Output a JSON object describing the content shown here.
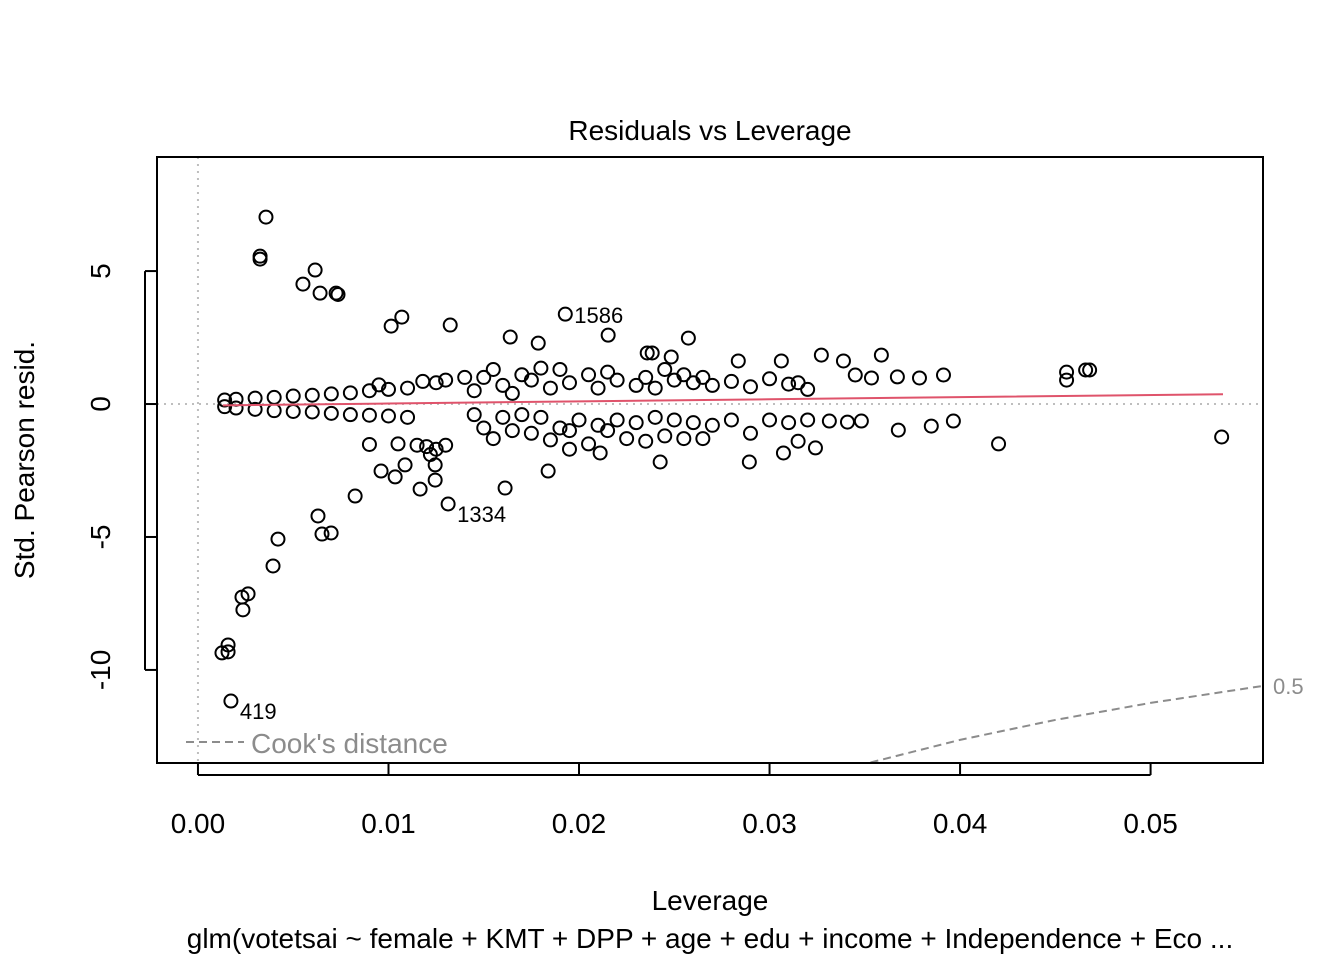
{
  "chart_data": {
    "type": "scatter",
    "title": "Residuals vs Leverage",
    "x_label": "Leverage",
    "y_label": "Std. Pearson resid.",
    "subtitle": "glm(votetsai ~ female + KMT + DPP + age + edu + income + Independence + Eco ...",
    "xlim": [
      -0.00215,
      0.0559
    ],
    "ylim": [
      -13.5,
      9.29
    ],
    "xticks": [
      {
        "value": 0,
        "label": "0.00"
      },
      0.01,
      0.02,
      0.03,
      0.04,
      0.05
    ],
    "yticks": [
      -10,
      -5,
      0,
      5
    ],
    "reference_lines": {
      "x": 0,
      "y": 0
    },
    "series": [
      {
        "color": "#000000",
        "x": [
          0.00357,
          0.00326,
          0.00326,
          0.00615,
          0.00551,
          0.00641,
          0.00725,
          0.00735,
          0.01014,
          0.0107,
          0.01324,
          0.01928,
          0.02153,
          0.01639,
          0.01786,
          0.02574,
          0.02358,
          0.02384,
          0.02484,
          0.02836,
          0.03062,
          0.03272,
          0.03388,
          0.03587,
          0.0345,
          0.03535,
          0.03671,
          0.03787,
          0.03913,
          0.04559,
          0.04559,
          0.04659,
          0.0468,
          0.05373,
          0.04202,
          0.03965,
          0.03849,
          0.03676,
          0.03482,
          0.03409,
          0.03314,
          0.03241,
          0.03073,
          0.02894,
          0.02426,
          0.02111,
          0.01838,
          0.01612,
          0.01313,
          0.01245,
          0.01245,
          0.01166,
          0.01087,
          0.01035,
          0.00961,
          0.00825,
          0.0063,
          0.00651,
          0.00699,
          0.0042,
          0.00394,
          0.00263,
          0.00236,
          0.00231,
          0.00158,
          0.00158,
          0.00126,
          0.00173,
          0.0014,
          0.002,
          0.003,
          0.004,
          0.005,
          0.006,
          0.007,
          0.008,
          0.009,
          0.01,
          0.011,
          0.0014,
          0.002,
          0.003,
          0.004,
          0.005,
          0.006,
          0.007,
          0.008,
          0.009,
          0.01,
          0.011,
          0.0095,
          0.0105,
          0.009,
          0.0115,
          0.012,
          0.0125,
          0.0122,
          0.013,
          0.0118,
          0.0125,
          0.013,
          0.014,
          0.0145,
          0.015,
          0.0155,
          0.016,
          0.0165,
          0.017,
          0.0175,
          0.018,
          0.0185,
          0.019,
          0.0195,
          0.0205,
          0.021,
          0.0215,
          0.022,
          0.023,
          0.0235,
          0.024,
          0.0245,
          0.025,
          0.0255,
          0.026,
          0.0265,
          0.027,
          0.028,
          0.029,
          0.03,
          0.031,
          0.0315,
          0.032,
          0.0145,
          0.015,
          0.0155,
          0.016,
          0.0165,
          0.017,
          0.0175,
          0.018,
          0.0185,
          0.019,
          0.0195,
          0.02,
          0.0205,
          0.021,
          0.0215,
          0.022,
          0.0225,
          0.023,
          0.0235,
          0.024,
          0.0245,
          0.025,
          0.0255,
          0.026,
          0.027,
          0.028,
          0.029,
          0.03,
          0.031,
          0.0315,
          0.032,
          0.0265,
          0.0195
        ],
        "values": [
          7.03,
          5.56,
          5.45,
          5.04,
          4.51,
          4.17,
          4.17,
          4.12,
          2.93,
          3.27,
          2.97,
          3.38,
          2.59,
          2.52,
          2.29,
          2.48,
          1.92,
          1.92,
          1.77,
          1.62,
          1.62,
          1.84,
          1.62,
          1.84,
          1.09,
          0.98,
          1.02,
          0.98,
          1.09,
          1.2,
          0.9,
          1.28,
          1.28,
          -1.24,
          -1.5,
          -0.64,
          -0.83,
          -0.98,
          -0.64,
          -0.68,
          -0.64,
          -1.65,
          -1.84,
          -2.18,
          -2.18,
          -1.84,
          -2.52,
          -3.16,
          -3.76,
          -2.29,
          -2.86,
          -3.2,
          -2.29,
          -2.74,
          -2.52,
          -3.46,
          -4.21,
          -4.89,
          -4.85,
          -5.08,
          -6.09,
          -7.14,
          -7.74,
          -7.26,
          -9.06,
          -9.32,
          -9.36,
          -11.17,
          0.15,
          0.18,
          0.22,
          0.25,
          0.3,
          0.33,
          0.38,
          0.42,
          0.5,
          0.55,
          0.6,
          -0.1,
          -0.15,
          -0.2,
          -0.25,
          -0.28,
          -0.3,
          -0.35,
          -0.4,
          -0.42,
          -0.45,
          -0.5,
          0.72,
          -1.5,
          -1.52,
          -1.55,
          -1.6,
          -1.7,
          -1.9,
          -1.55,
          0.85,
          0.8,
          0.9,
          1.0,
          0.5,
          1.0,
          1.3,
          0.7,
          0.4,
          1.1,
          0.9,
          1.35,
          0.6,
          1.3,
          0.8,
          1.1,
          0.6,
          1.2,
          0.9,
          0.7,
          1.0,
          0.6,
          1.3,
          0.9,
          1.1,
          0.8,
          1.0,
          0.7,
          0.85,
          0.65,
          0.95,
          0.75,
          0.8,
          0.55,
          -0.4,
          -0.9,
          -1.3,
          -0.5,
          -1.0,
          -0.4,
          -1.1,
          -0.5,
          -1.35,
          -0.9,
          -1.0,
          -0.6,
          -1.5,
          -0.8,
          -1.0,
          -0.6,
          -1.3,
          -0.7,
          -1.4,
          -0.5,
          -1.2,
          -0.6,
          -1.3,
          -0.7,
          -0.8,
          -0.6,
          -1.1,
          -0.6,
          -0.7,
          -1.4,
          -0.6,
          -1.3,
          -1.7
        ]
      }
    ],
    "smoother": {
      "color": "#df536b",
      "x": [
        0.0013,
        0.01,
        0.02,
        0.03,
        0.04,
        0.0538
      ],
      "values": [
        -0.05,
        0.02,
        0.1,
        0.18,
        0.26,
        0.37
      ]
    },
    "cooks_distance": {
      "name": "Cook's distance",
      "level": "0.5",
      "color": "#8c8c8c",
      "x": [
        0.0353,
        0.04,
        0.045,
        0.05,
        0.0559
      ],
      "values": [
        -13.48,
        -12.63,
        -11.88,
        -11.24,
        -10.6
      ]
    },
    "annotations": [
      {
        "text": "1586",
        "x": 0.01928,
        "y": 3.38
      },
      {
        "text": "1334",
        "x": 0.01313,
        "y": -3.76
      },
      {
        "text": "419",
        "x": 0.00173,
        "y": -11.17
      }
    ]
  }
}
